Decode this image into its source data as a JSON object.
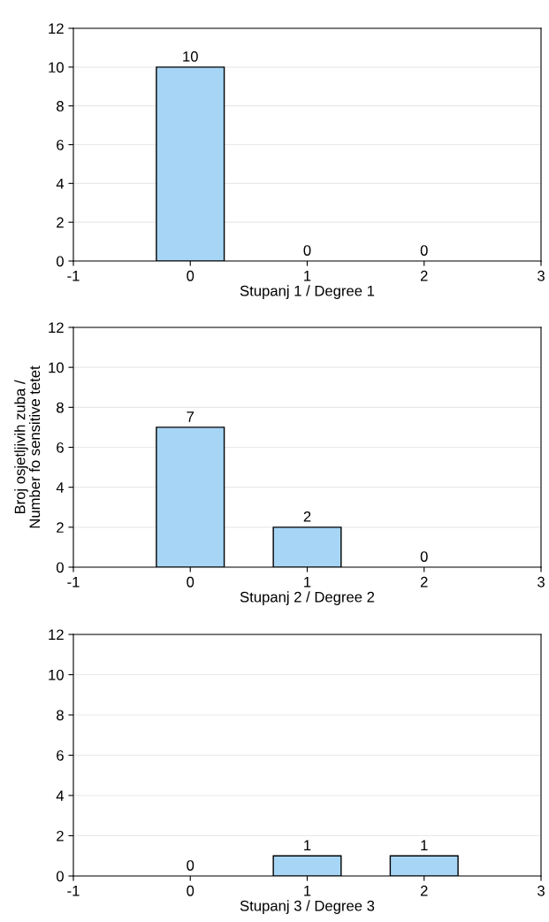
{
  "chart_data": [
    {
      "type": "bar",
      "xlabel": "Stupanj 1 / Degree 1",
      "x": [
        0,
        1,
        2
      ],
      "values": [
        10,
        0,
        0
      ],
      "color": "#a6d5f5",
      "xlim": [
        -1,
        3
      ],
      "xticks": [
        -1,
        0,
        1,
        2,
        3
      ],
      "ylim": [
        0,
        12
      ],
      "yticks": [
        0,
        2,
        4,
        6,
        8,
        10,
        12
      ],
      "grid": "y",
      "data_labels": true
    },
    {
      "type": "bar",
      "xlabel": "Stupanj 2 / Degree 2",
      "ylabel": "Broj osjetljivih zuba /\nNumber fo sensitive tetet",
      "x": [
        0,
        1,
        2
      ],
      "values": [
        7,
        2,
        0
      ],
      "color": "#a6d5f5",
      "xlim": [
        -1,
        3
      ],
      "xticks": [
        -1,
        0,
        1,
        2,
        3
      ],
      "ylim": [
        0,
        12
      ],
      "yticks": [
        0,
        2,
        4,
        6,
        8,
        10,
        12
      ],
      "grid": "y",
      "data_labels": true
    },
    {
      "type": "bar",
      "xlabel": "Stupanj 3 / Degree 3",
      "x": [
        0,
        1,
        2
      ],
      "values": [
        0,
        1,
        1
      ],
      "color": "#a6d5f5",
      "xlim": [
        -1,
        3
      ],
      "xticks": [
        -1,
        0,
        1,
        2,
        3
      ],
      "ylim": [
        0,
        12
      ],
      "yticks": [
        0,
        2,
        4,
        6,
        8,
        10,
        12
      ],
      "grid": "y",
      "data_labels": true
    }
  ]
}
